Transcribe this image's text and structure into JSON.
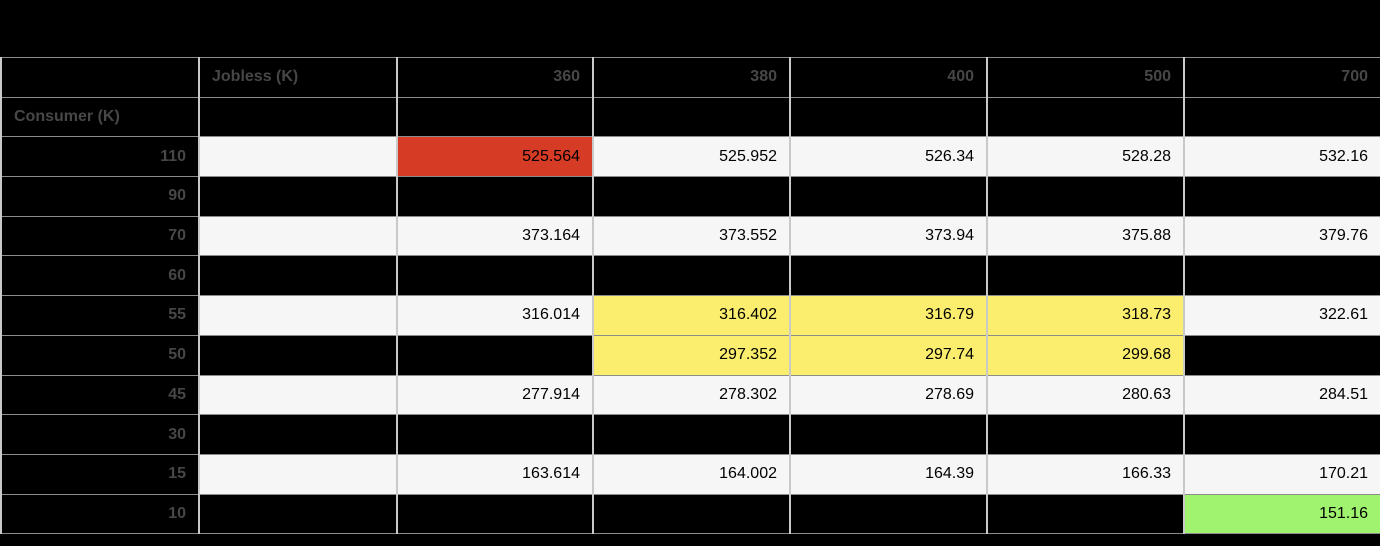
{
  "table": {
    "corner_label": "",
    "jobless_header": "Jobless (K)",
    "consumer_header": "Consumer (K)",
    "column_headers": [
      "360",
      "380",
      "400",
      "500",
      "700"
    ],
    "rows": [
      {
        "label": "110",
        "cells": [
          {
            "v": "",
            "bg": "white"
          },
          {
            "v": "525.564",
            "bg": "red"
          },
          {
            "v": "525.952",
            "bg": "white"
          },
          {
            "v": "526.34",
            "bg": "white"
          },
          {
            "v": "528.28",
            "bg": "white"
          },
          {
            "v": "532.16",
            "bg": "white"
          }
        ]
      },
      {
        "label": "90",
        "cells": [
          {
            "v": "",
            "bg": "black"
          },
          {
            "v": "",
            "bg": "black"
          },
          {
            "v": "",
            "bg": "black"
          },
          {
            "v": "",
            "bg": "black"
          },
          {
            "v": "",
            "bg": "black"
          },
          {
            "v": "",
            "bg": "black"
          }
        ]
      },
      {
        "label": "70",
        "cells": [
          {
            "v": "",
            "bg": "white"
          },
          {
            "v": "373.164",
            "bg": "white"
          },
          {
            "v": "373.552",
            "bg": "white"
          },
          {
            "v": "373.94",
            "bg": "white"
          },
          {
            "v": "375.88",
            "bg": "white"
          },
          {
            "v": "379.76",
            "bg": "white"
          }
        ]
      },
      {
        "label": "60",
        "cells": [
          {
            "v": "",
            "bg": "black"
          },
          {
            "v": "",
            "bg": "black"
          },
          {
            "v": "",
            "bg": "black"
          },
          {
            "v": "",
            "bg": "black"
          },
          {
            "v": "",
            "bg": "black"
          },
          {
            "v": "",
            "bg": "black"
          }
        ]
      },
      {
        "label": "55",
        "cells": [
          {
            "v": "",
            "bg": "white"
          },
          {
            "v": "316.014",
            "bg": "white"
          },
          {
            "v": "316.402",
            "bg": "yellow"
          },
          {
            "v": "316.79",
            "bg": "yellow"
          },
          {
            "v": "318.73",
            "bg": "yellow"
          },
          {
            "v": "322.61",
            "bg": "white"
          }
        ]
      },
      {
        "label": "50",
        "cells": [
          {
            "v": "",
            "bg": "black"
          },
          {
            "v": "",
            "bg": "black"
          },
          {
            "v": "297.352",
            "bg": "yellow"
          },
          {
            "v": "297.74",
            "bg": "yellow"
          },
          {
            "v": "299.68",
            "bg": "yellow"
          },
          {
            "v": "",
            "bg": "black"
          }
        ]
      },
      {
        "label": "45",
        "cells": [
          {
            "v": "",
            "bg": "white"
          },
          {
            "v": "277.914",
            "bg": "white"
          },
          {
            "v": "278.302",
            "bg": "white"
          },
          {
            "v": "278.69",
            "bg": "white"
          },
          {
            "v": "280.63",
            "bg": "white"
          },
          {
            "v": "284.51",
            "bg": "white"
          }
        ]
      },
      {
        "label": "30",
        "cells": [
          {
            "v": "",
            "bg": "black"
          },
          {
            "v": "",
            "bg": "black"
          },
          {
            "v": "",
            "bg": "black"
          },
          {
            "v": "",
            "bg": "black"
          },
          {
            "v": "",
            "bg": "black"
          },
          {
            "v": "",
            "bg": "black"
          }
        ]
      },
      {
        "label": "15",
        "cells": [
          {
            "v": "",
            "bg": "white"
          },
          {
            "v": "163.614",
            "bg": "white"
          },
          {
            "v": "164.002",
            "bg": "white"
          },
          {
            "v": "164.39",
            "bg": "white"
          },
          {
            "v": "166.33",
            "bg": "white"
          },
          {
            "v": "170.21",
            "bg": "white"
          }
        ]
      },
      {
        "label": "10",
        "cells": [
          {
            "v": "",
            "bg": "black"
          },
          {
            "v": "",
            "bg": "black"
          },
          {
            "v": "",
            "bg": "black"
          },
          {
            "v": "",
            "bg": "black"
          },
          {
            "v": "",
            "bg": "black"
          },
          {
            "v": "151.16",
            "bg": "green"
          }
        ]
      }
    ]
  },
  "colors": {
    "black": "#000000",
    "white": "#f5f6f5",
    "red": "#d63b26",
    "yellow": "#fbee6e",
    "green": "#a0f36e",
    "label_text": "#474747",
    "value_text": "#000000",
    "grid_horizontal": "#8c8c8c",
    "grid_vertical": "#c9c9c9"
  }
}
